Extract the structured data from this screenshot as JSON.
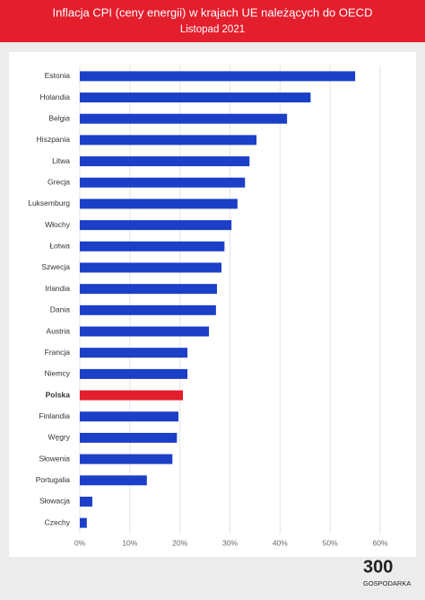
{
  "chart_data": {
    "type": "hbar",
    "title": "Inflacja CPI (ceny energii) w krajach UE należących do OECD",
    "subtitle": "Listopad 2021",
    "categories": [
      "Estonia",
      "Holandia",
      "Belgia",
      "Hiszpania",
      "Litwa",
      "Grecja",
      "Luksemburg",
      "Włochy",
      "Łotwa",
      "Szwecja",
      "Irlandia",
      "Dania",
      "Austria",
      "Francja",
      "Niemcy",
      "Polska",
      "Finlandia",
      "Węgry",
      "Słowenia",
      "Portugalia",
      "Słowacja",
      "Czechy"
    ],
    "values": [
      55.0,
      46.1,
      41.4,
      35.3,
      33.9,
      33.0,
      31.5,
      30.3,
      28.9,
      28.3,
      27.4,
      27.2,
      25.8,
      21.5,
      21.5,
      20.6,
      19.7,
      19.4,
      18.5,
      13.4,
      2.5,
      1.4
    ],
    "colors": [
      "#1c3fc8",
      "#1c3fc8",
      "#1c3fc8",
      "#1c3fc8",
      "#1c3fc8",
      "#1c3fc8",
      "#1c3fc8",
      "#1c3fc8",
      "#1c3fc8",
      "#1c3fc8",
      "#1c3fc8",
      "#1c3fc8",
      "#1c3fc8",
      "#1c3fc8",
      "#1c3fc8",
      "#e31e2d",
      "#1c3fc8",
      "#1c3fc8",
      "#1c3fc8",
      "#1c3fc8",
      "#1c3fc8",
      "#1c3fc8"
    ],
    "xlim": [
      0,
      60
    ],
    "xticks": [
      {
        "value": 0,
        "label": "0%"
      },
      {
        "value": 10,
        "label": "10%"
      },
      {
        "value": 20,
        "label": "20%"
      },
      {
        "value": 30,
        "label": "30%"
      },
      {
        "value": 40,
        "label": "40%"
      },
      {
        "value": 50,
        "label": "50%"
      },
      {
        "value": 60,
        "label": "60%"
      }
    ],
    "grid": true
  },
  "logo": {
    "number": "300",
    "name": "GOSPODARKA"
  }
}
